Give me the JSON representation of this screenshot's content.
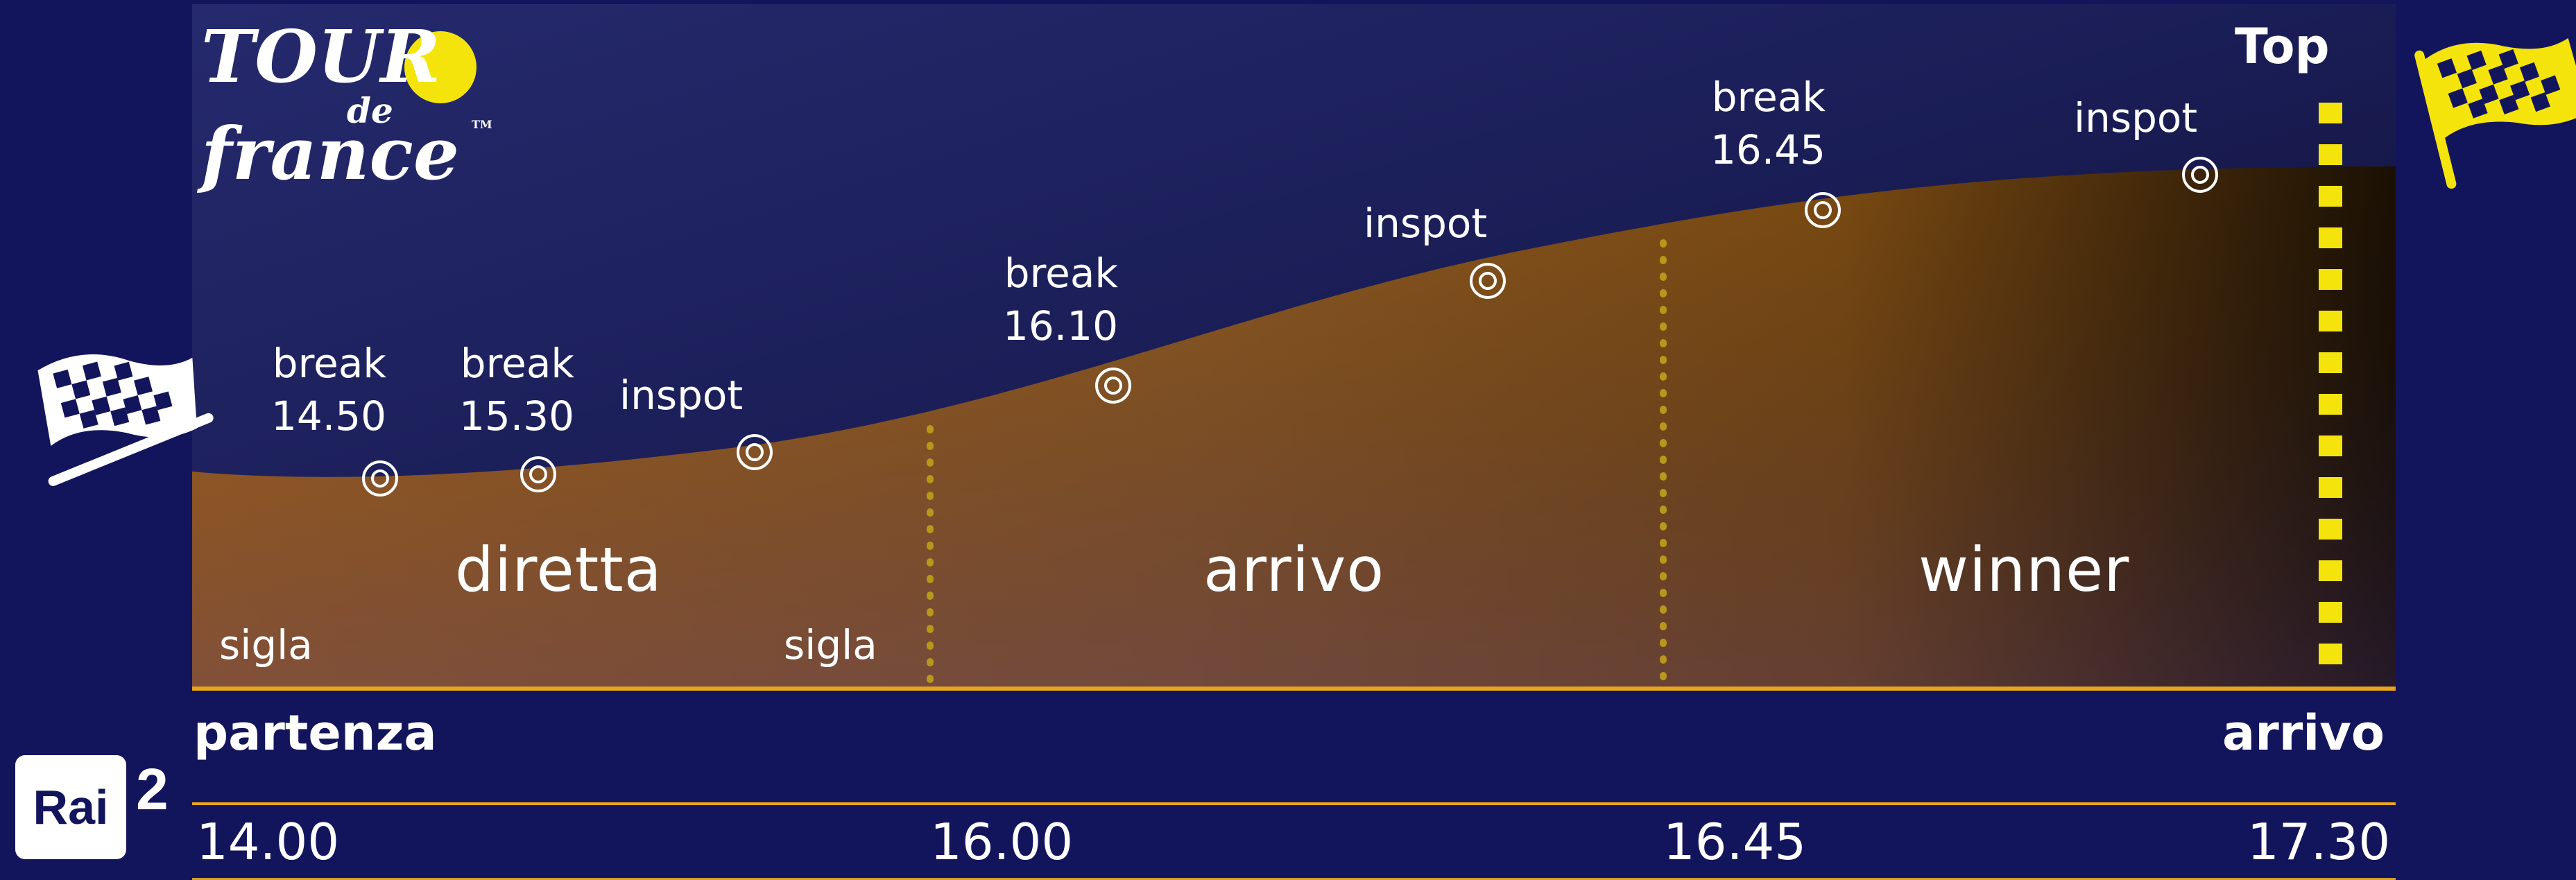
{
  "logo": {
    "line1": "TOUR",
    "line2": "de",
    "line3": "france",
    "tm": "TM"
  },
  "top_label": "Top",
  "segments": [
    "diretta",
    "arrivo",
    "winner"
  ],
  "sigla": [
    "sigla",
    "sigla"
  ],
  "breaks": [
    {
      "word": "break",
      "time": "14.50"
    },
    {
      "word": "break",
      "time": "15.30"
    },
    {
      "word": "break",
      "time": "16.10"
    },
    {
      "word": "break",
      "time": "16.45"
    }
  ],
  "inspots": [
    "inspot",
    "inspot",
    "inspot"
  ],
  "start_label": "partenza",
  "end_label": "arrivo",
  "times": [
    "14.00",
    "16.00",
    "16.45",
    "17.30"
  ],
  "brand": {
    "rai": "Rai",
    "num": "2"
  },
  "colors": {
    "background": "#13155c",
    "profile": "#b06d1c",
    "accent": "#f4e40c",
    "line": "#e8a51c"
  }
}
